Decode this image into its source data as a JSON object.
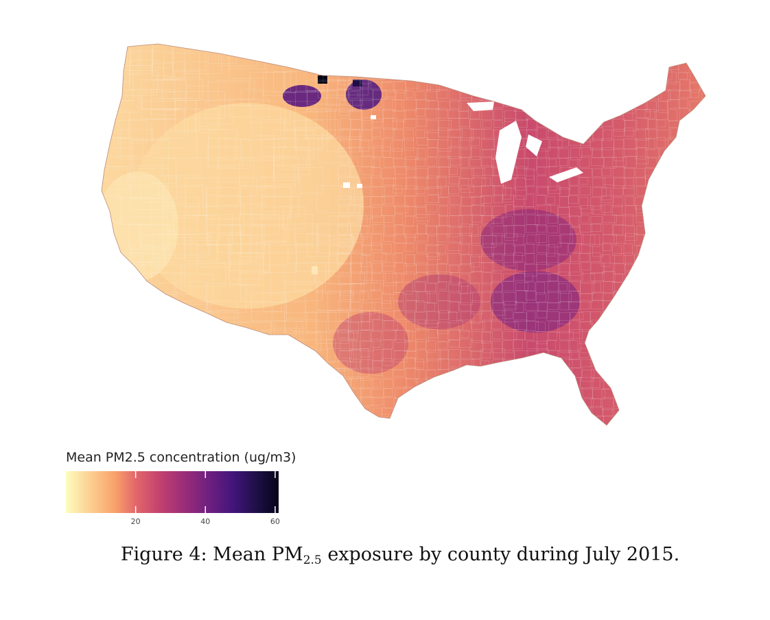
{
  "map": {
    "subject": "Mean PM2.5 concentration by county, contiguous United States",
    "color_scale": {
      "name": "magma (reversed)",
      "min": 0,
      "max": 61,
      "stops": [
        {
          "value": 0,
          "color": "#fcfdbf"
        },
        {
          "value": 8,
          "color": "#fcc98b"
        },
        {
          "value": 14,
          "color": "#f8a26b"
        },
        {
          "value": 20,
          "color": "#e3676a"
        },
        {
          "value": 27,
          "color": "#c2416f"
        },
        {
          "value": 34,
          "color": "#9a2c78"
        },
        {
          "value": 41,
          "color": "#6e2080"
        },
        {
          "value": 48,
          "color": "#42157a"
        },
        {
          "value": 55,
          "color": "#1d0f45"
        },
        {
          "value": 61,
          "color": "#050416"
        }
      ]
    },
    "regions": [
      {
        "name": "Pacific coast",
        "approx_value": 6
      },
      {
        "name": "Great Basin / Rockies",
        "approx_value": 8
      },
      {
        "name": "Southwest",
        "approx_value": 11
      },
      {
        "name": "Northern Plains",
        "approx_value": 14
      },
      {
        "name": "Northern Great Plains hotspot (Montana–North Dakota border)",
        "approx_value": 45
      },
      {
        "name": "Midwest",
        "approx_value": 20
      },
      {
        "name": "Texas / Gulf",
        "approx_value": 24
      },
      {
        "name": "Ohio Valley / Kentucky",
        "approx_value": 30
      },
      {
        "name": "Georgia / South Carolina",
        "approx_value": 32
      },
      {
        "name": "Northeast",
        "approx_value": 17
      },
      {
        "name": "Florida",
        "approx_value": 22
      }
    ]
  },
  "legend": {
    "title": "Mean PM2.5 concentration (ug/m3)",
    "ticks": [
      {
        "value": 20,
        "label": "20"
      },
      {
        "value": 40,
        "label": "40"
      },
      {
        "value": 60,
        "label": "60"
      }
    ]
  },
  "caption": {
    "prefix": "Figure 4: Mean PM",
    "subscript": "2.5",
    "suffix": " exposure by county during July 2015."
  }
}
